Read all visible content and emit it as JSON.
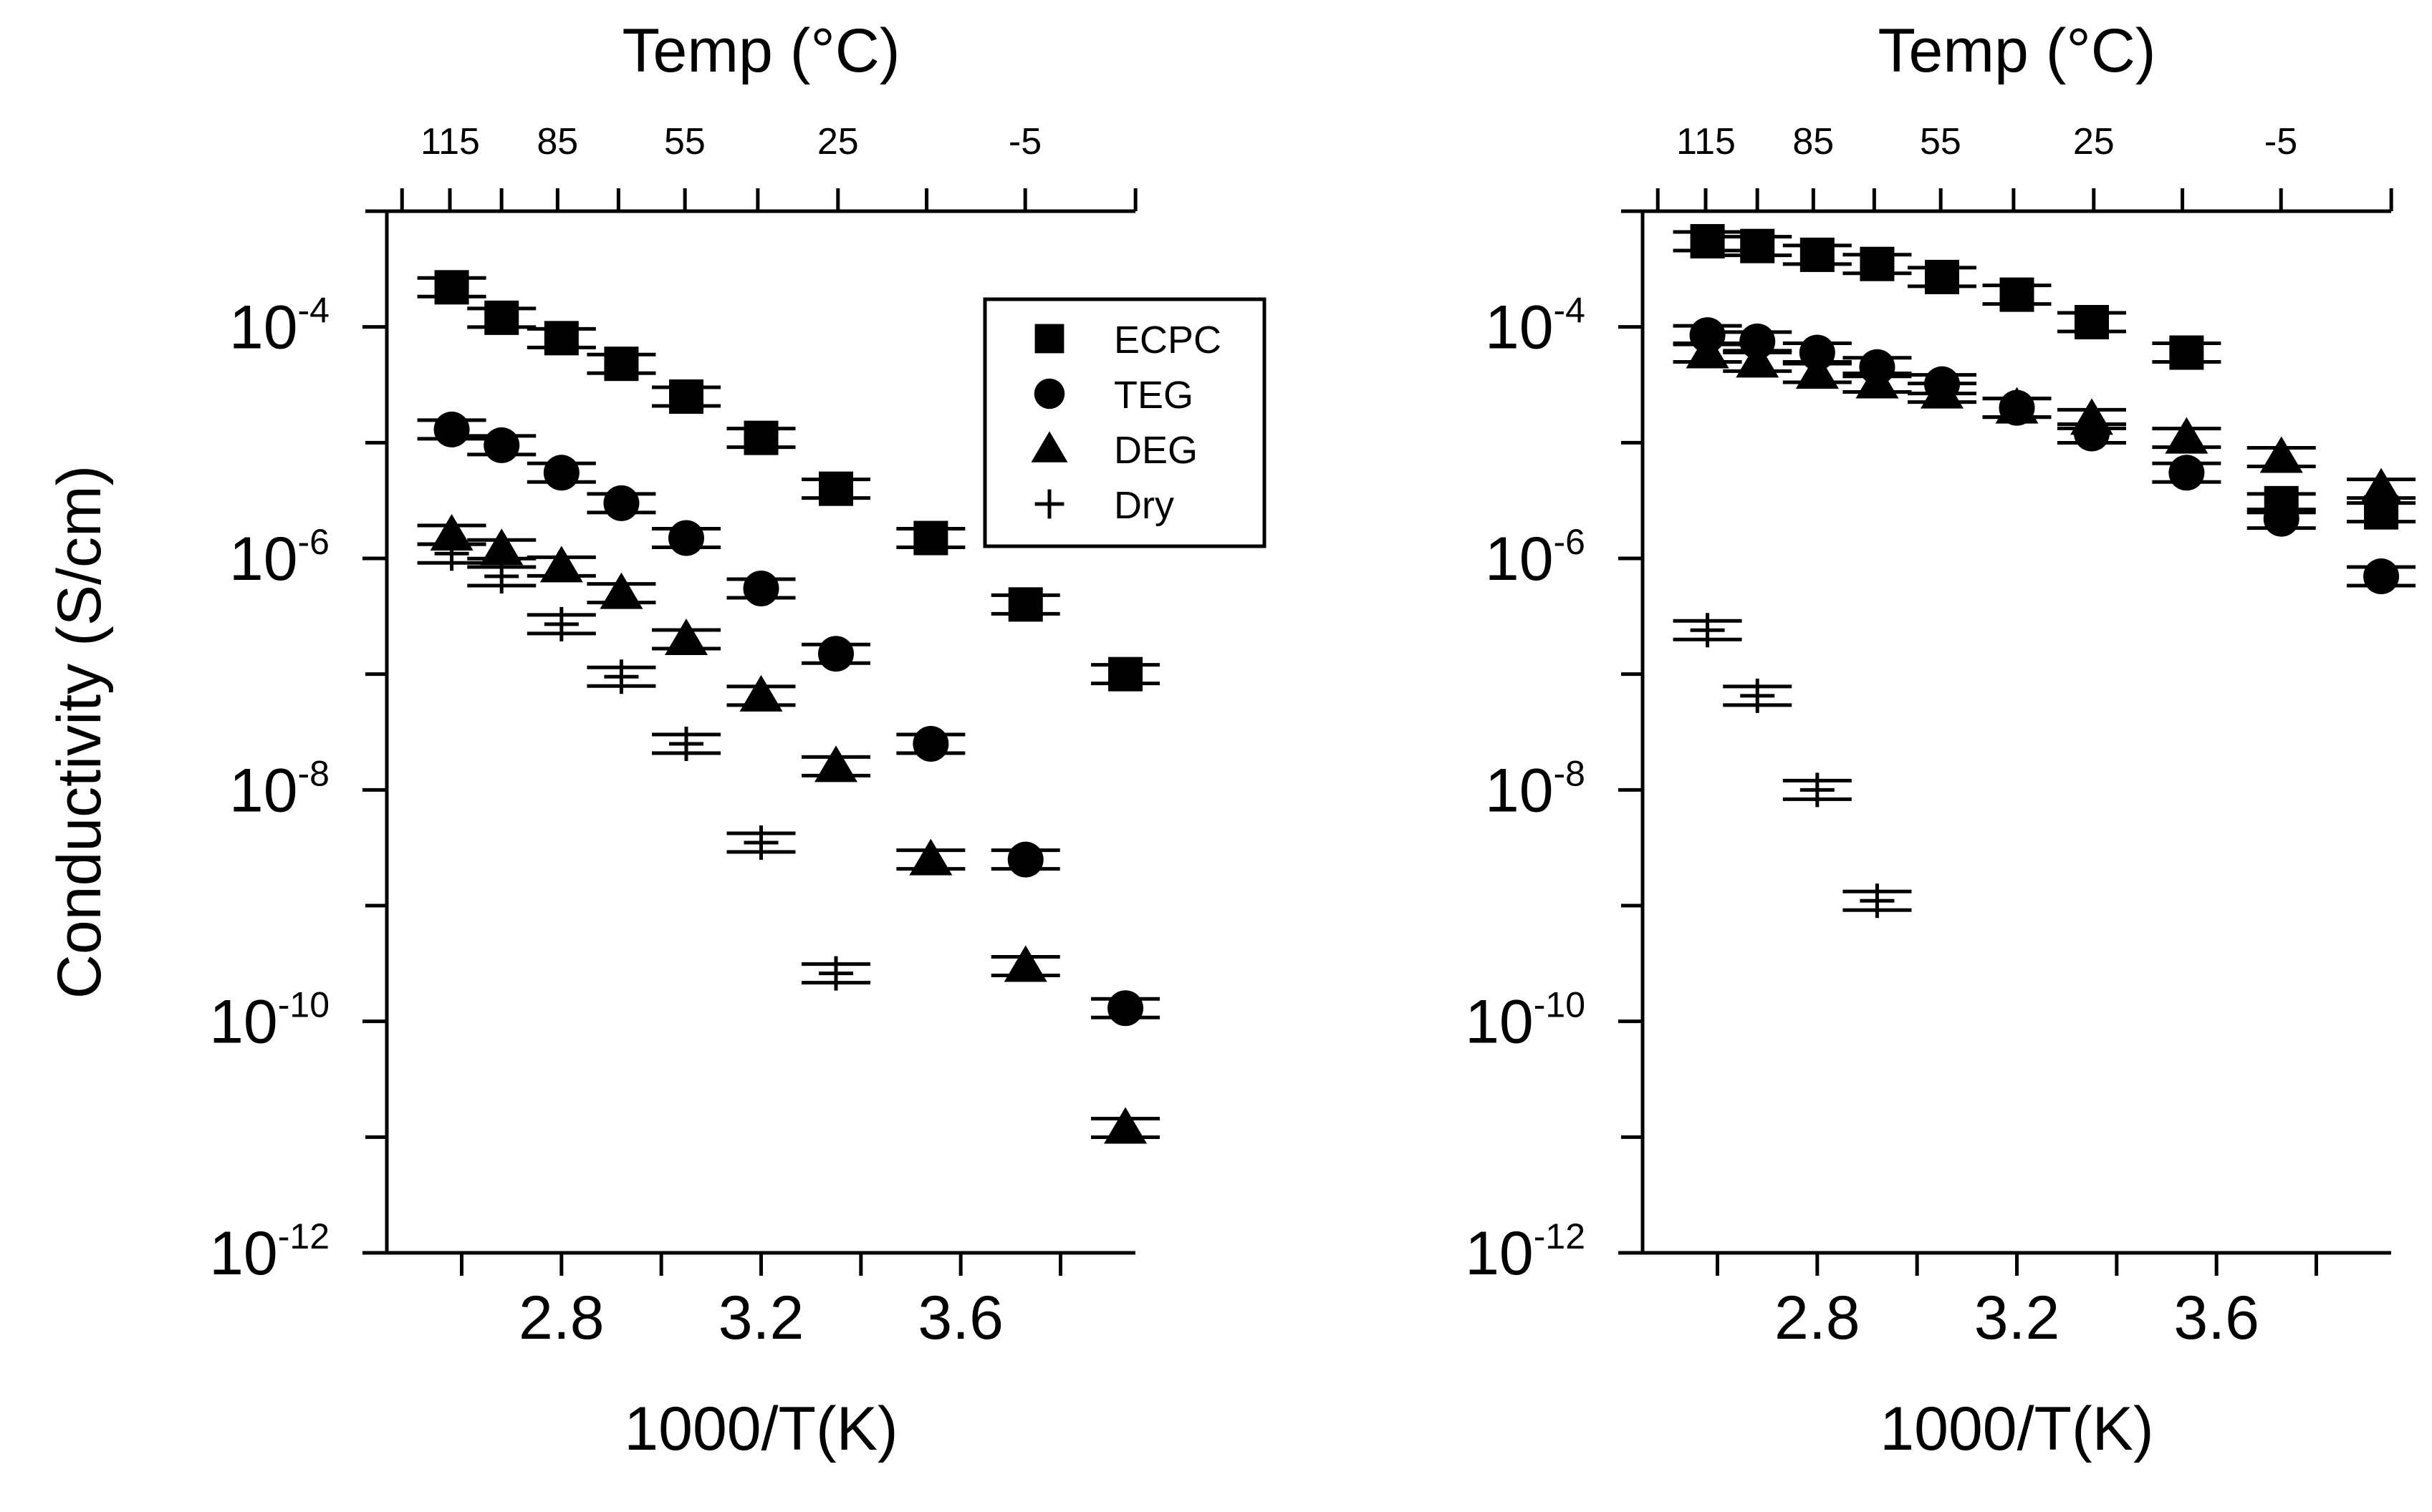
{
  "chart_data": [
    {
      "type": "scatter",
      "y_scale": "log",
      "xlabel": "1000/T(K)",
      "ylabel": "Conductivity (S/cm)",
      "x2label": "Temp (°C)",
      "xlim": [
        2.45,
        3.95
      ],
      "ylim": [
        1e-12,
        0.001
      ],
      "x_ticks": [
        2.8,
        3.2,
        3.6
      ],
      "x_tick_labels": [
        "2.8",
        "3.2",
        "3.6"
      ],
      "y_ticks": [
        0.0001,
        1e-06,
        1e-08,
        1e-10,
        1e-12
      ],
      "y_tick_labels": [
        {
          "base": "10",
          "exp": "-4"
        },
        {
          "base": "10",
          "exp": "-6"
        },
        {
          "base": "10",
          "exp": "-8"
        },
        {
          "base": "10",
          "exp": "-10"
        },
        {
          "base": "10",
          "exp": "-12"
        }
      ],
      "top_ticks": [
        {
          "label": "115",
          "x": 2.577
        },
        {
          "label": "85",
          "x": 2.792
        },
        {
          "label": "55",
          "x": 3.047
        },
        {
          "label": "25",
          "x": 3.354
        },
        {
          "label": "-5",
          "x": 3.729
        }
      ],
      "legend": [
        "ECPC",
        "TEG",
        "DEG",
        "Dry"
      ],
      "series": [
        {
          "name": "ECPC",
          "marker": "square",
          "x": [
            2.58,
            2.68,
            2.8,
            2.92,
            3.05,
            3.2,
            3.35,
            3.54,
            3.73,
            3.93
          ],
          "y": [
            0.00022,
            0.00012,
            8e-05,
            4.8e-05,
            2.5e-05,
            1.1e-05,
            4e-06,
            1.5e-06,
            4e-07,
            1e-07
          ]
        },
        {
          "name": "TEG",
          "marker": "circle",
          "x": [
            2.58,
            2.68,
            2.8,
            2.92,
            3.05,
            3.2,
            3.35,
            3.54,
            3.73,
            3.93
          ],
          "y": [
            1.3e-05,
            9.5e-06,
            5.5e-06,
            3e-06,
            1.5e-06,
            5.5e-07,
            1.5e-07,
            2.5e-08,
            2.5e-09,
            1.3e-10
          ]
        },
        {
          "name": "DEG",
          "marker": "triangle",
          "x": [
            2.58,
            2.68,
            2.8,
            2.92,
            3.05,
            3.2,
            3.35,
            3.54,
            3.73,
            3.93
          ],
          "y": [
            1.6e-06,
            1.2e-06,
            8.5e-07,
            5e-07,
            2e-07,
            6.5e-08,
            1.6e-08,
            2.5e-09,
            3e-10,
            1.2e-11
          ]
        },
        {
          "name": "Dry",
          "marker": "plus",
          "x": [
            2.58,
            2.68,
            2.8,
            2.92,
            3.05,
            3.2,
            3.35
          ],
          "y": [
            1.1e-06,
            7e-07,
            2.7e-07,
            9.5e-08,
            2.5e-08,
            3.5e-09,
            2.6e-10
          ]
        }
      ]
    },
    {
      "type": "scatter",
      "y_scale": "log",
      "xlabel": "1000/T(K)",
      "ylabel": "",
      "x2label": "Temp (°C)",
      "xlim": [
        2.45,
        3.95
      ],
      "ylim": [
        1e-12,
        0.001
      ],
      "x_ticks": [
        2.8,
        3.2,
        3.6
      ],
      "x_tick_labels": [
        "2.8",
        "3.2",
        "3.6"
      ],
      "y_ticks": [
        0.0001,
        1e-06,
        1e-08,
        1e-10,
        1e-12
      ],
      "y_tick_labels": [
        {
          "base": "10",
          "exp": "-4"
        },
        {
          "base": "10",
          "exp": "-6"
        },
        {
          "base": "10",
          "exp": "-8"
        },
        {
          "base": "10",
          "exp": "-10"
        },
        {
          "base": "10",
          "exp": "-12"
        }
      ],
      "top_ticks": [
        {
          "label": "115",
          "x": 2.577
        },
        {
          "label": "85",
          "x": 2.792
        },
        {
          "label": "55",
          "x": 3.047
        },
        {
          "label": "25",
          "x": 3.354
        },
        {
          "label": "-5",
          "x": 3.729
        }
      ],
      "legend": [],
      "series": [
        {
          "name": "ECPC",
          "marker": "square",
          "x": [
            2.58,
            2.68,
            2.8,
            2.92,
            3.05,
            3.2,
            3.35,
            3.54,
            3.73,
            3.93
          ],
          "y": [
            0.00055,
            0.0005,
            0.00042,
            0.00035,
            0.00027,
            0.00019,
            0.00011,
            6e-05,
            3e-06,
            2.5e-06
          ]
        },
        {
          "name": "TEG",
          "marker": "circle",
          "x": [
            2.58,
            2.68,
            2.8,
            2.92,
            3.05,
            3.2,
            3.35,
            3.54,
            3.73,
            3.93
          ],
          "y": [
            8.5e-05,
            7.5e-05,
            6e-05,
            4.5e-05,
            3.2e-05,
            2e-05,
            1.2e-05,
            5.5e-06,
            2.2e-06,
            7e-07
          ]
        },
        {
          "name": "DEG",
          "marker": "triangle",
          "x": [
            2.58,
            2.68,
            2.8,
            2.92,
            3.05,
            3.2,
            3.35,
            3.54,
            3.73,
            3.93
          ],
          "y": [
            6e-05,
            5e-05,
            4e-05,
            3.3e-05,
            2.7e-05,
            2e-05,
            1.6e-05,
            1.1e-05,
            7.5e-06,
            4e-06
          ]
        },
        {
          "name": "Dry",
          "marker": "plus",
          "x": [
            2.58,
            2.68,
            2.8,
            2.92
          ],
          "y": [
            2.4e-07,
            6.5e-08,
            1e-08,
            1.1e-09
          ]
        }
      ]
    }
  ]
}
